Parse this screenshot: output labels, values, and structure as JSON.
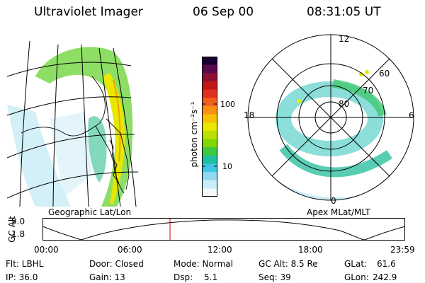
{
  "header": {
    "instrument": "Ultraviolet Imager",
    "date": "06 Sep 00",
    "time": "08:31:05 UT"
  },
  "colorbar": {
    "label": "photon cm⁻²s⁻¹",
    "ticks": [
      "100",
      "10"
    ],
    "colors": [
      "#1a0033",
      "#5a0a4a",
      "#8c1030",
      "#c01818",
      "#e03020",
      "#f06020",
      "#f89010",
      "#f8c000",
      "#e8e800",
      "#b8e000",
      "#80d800",
      "#40c840",
      "#20c0a0",
      "#40c8e0",
      "#90d8f0",
      "#c8ecf8",
      "#f0f8fc"
    ]
  },
  "polar": {
    "mlt_labels": {
      "top": "12",
      "left": "18",
      "right": "6",
      "bottom": "0"
    },
    "lat_labels": [
      "60",
      "70",
      "80"
    ]
  },
  "map_caption": "Geographic Lat/Lon",
  "polar_caption": "Apex MLat/MLT",
  "altitude_plot": {
    "axis_label": "GC Alt",
    "y_ticks": [
      "9.0",
      "1.8"
    ],
    "x_ticks": [
      "00:00",
      "06:00",
      "12:00",
      "18:00",
      "23:59"
    ],
    "marker_color": "#cc0000"
  },
  "info": {
    "row1": {
      "flt": "Flt: LBHL",
      "door": "Door: Closed",
      "mode": "Mode: Normal",
      "gcalt": "GC Alt: 8.5 Re",
      "glat_label": "GLat:",
      "glat_value": "61.6"
    },
    "row2": {
      "ip": "IP: 36.0",
      "gain": "Gain: 13",
      "dsp_label": "Dsp:",
      "dsp_value": "5.1",
      "seq": "Seq: 39",
      "glon_label": "GLon:",
      "glon_value": "242.9"
    }
  }
}
